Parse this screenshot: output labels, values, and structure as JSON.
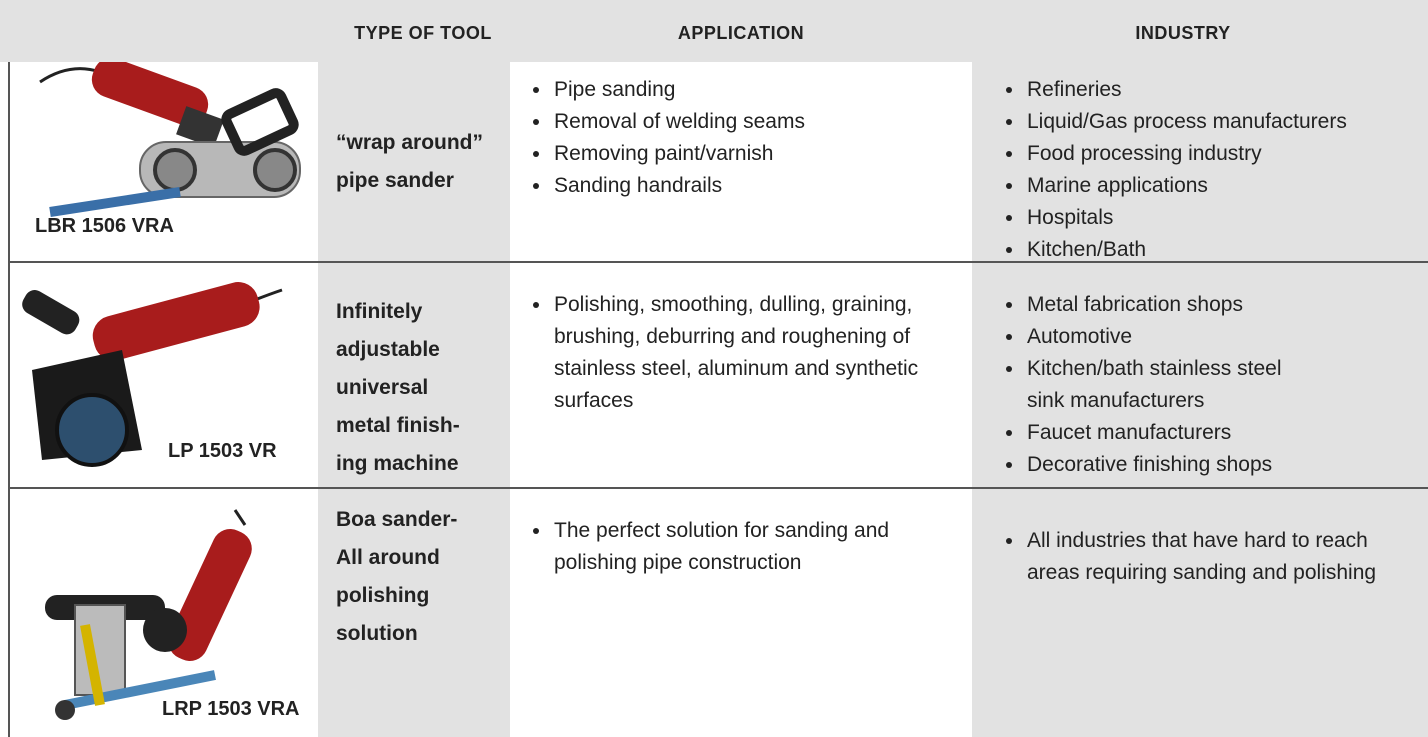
{
  "header": {
    "columns": [
      "TYPE OF TOOL",
      "APPLICATION",
      "INDUSTRY"
    ]
  },
  "rows": [
    {
      "model": "LBR 1506 VRA",
      "type": [
        "“wrap around”",
        "pipe sander"
      ],
      "application": [
        "Pipe sanding",
        "Removal of welding seams",
        "Removing paint/varnish",
        "Sanding handrails"
      ],
      "industry": [
        "Refineries",
        "Liquid/Gas process manufacturers",
        "Food processing industry",
        "Marine applications",
        "Hospitals",
        "Kitchen/Bath"
      ]
    },
    {
      "model": "LP 1503 VR",
      "type": [
        "Infinitely",
        "adjustable",
        "universal",
        "metal finish-",
        "ing machine"
      ],
      "application": [
        "Polishing, smoothing, dulling, graining, brushing, deburring and roughening of stainless steel, aluminum and synthetic surfaces"
      ],
      "industry": [
        "Metal fabrication shops",
        "Automotive",
        "Kitchen/bath stainless steel sink manufacturers",
        "Faucet manufacturers",
        "Decorative finishing shops"
      ]
    },
    {
      "model": "LRP 1503 VRA",
      "type": [
        "Boa sander-",
        "All around",
        "polishing",
        "solution"
      ],
      "application": [
        "The perfect solution for sanding and polishing pipe construction"
      ],
      "industry": [
        "All industries that have hard to reach areas requiring sanding and polishing"
      ]
    }
  ]
}
